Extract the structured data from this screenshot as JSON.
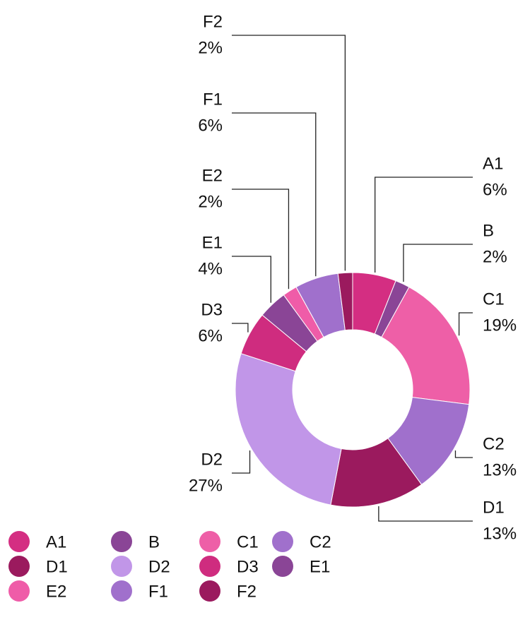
{
  "chart_data": {
    "type": "donut",
    "categories": [
      "A1",
      "B",
      "C1",
      "C2",
      "D1",
      "D2",
      "D3",
      "E1",
      "E2",
      "F1",
      "F2"
    ],
    "values": [
      6,
      2,
      19,
      13,
      13,
      27,
      6,
      4,
      2,
      6,
      2
    ],
    "value_labels": [
      "6%",
      "2%",
      "19%",
      "13%",
      "13%",
      "27%",
      "6%",
      "4%",
      "2%",
      "6%",
      "2%"
    ],
    "colors": [
      "#d42e82",
      "#8a4596",
      "#ee5fa7",
      "#a070cc",
      "#9b1a5e",
      "#c196e8",
      "#cf2c7f",
      "#8a4596",
      "#ef5ca8",
      "#a070cc",
      "#9b1a5e"
    ]
  }
}
